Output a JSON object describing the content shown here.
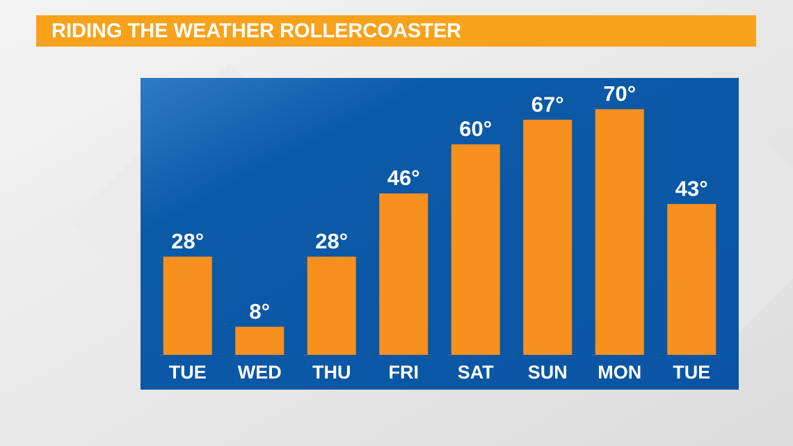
{
  "chart_data": {
    "type": "bar",
    "title": "RIDING THE WEATHER ROLLERCOASTER",
    "categories": [
      "TUE",
      "WED",
      "THU",
      "FRI",
      "SAT",
      "SUN",
      "MON",
      "TUE"
    ],
    "values": [
      28,
      8,
      28,
      46,
      60,
      67,
      70,
      43
    ],
    "value_labels": [
      "28°",
      "8°",
      "28°",
      "46°",
      "60°",
      "67°",
      "70°",
      "43°"
    ],
    "color": "#f7901e"
  }
}
